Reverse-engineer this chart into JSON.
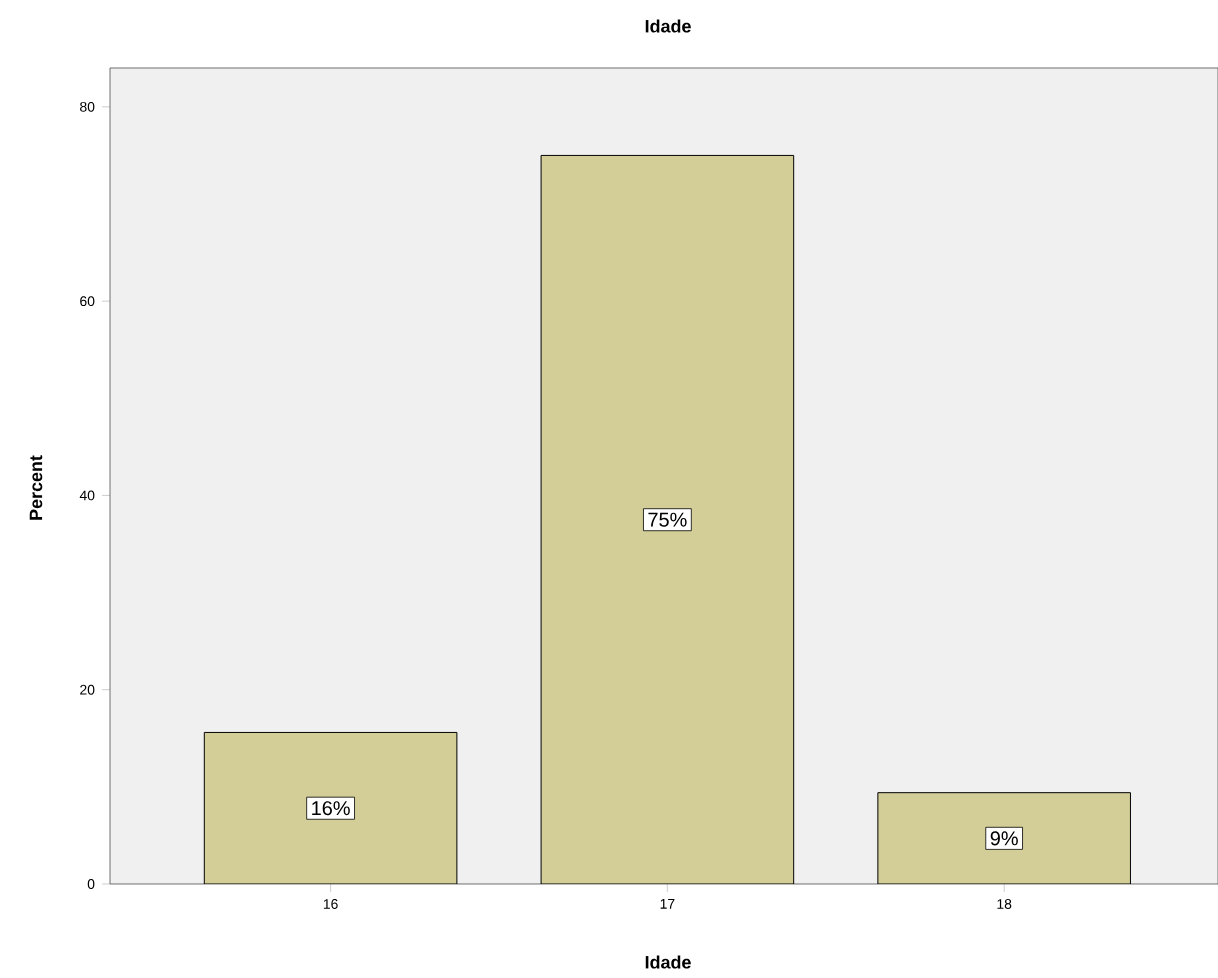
{
  "chart_data": {
    "type": "bar",
    "title": "Idade",
    "xlabel": "Idade",
    "ylabel": "Percent",
    "categories": [
      "16",
      "17",
      "18"
    ],
    "values": [
      15.6,
      75,
      9.4
    ],
    "value_labels": [
      "16%",
      "75%",
      "9%"
    ],
    "color": "#d3ce97",
    "ylim": [
      0,
      84
    ],
    "yticks": [
      0,
      20,
      40,
      60,
      80
    ]
  }
}
